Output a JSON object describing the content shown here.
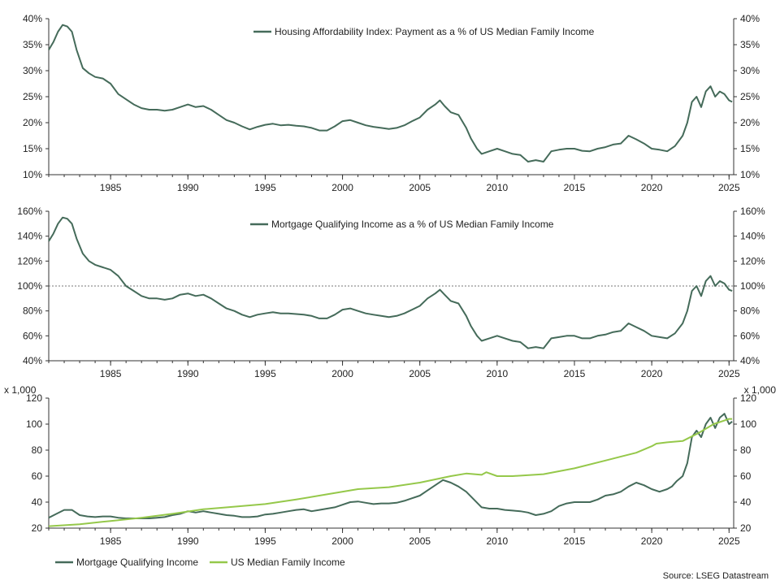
{
  "source": "Source: LSEG Datastream",
  "colors": {
    "dark_green": "#456b5a",
    "light_green": "#95c84a",
    "axis": "#333333",
    "ref_line": "#777777"
  },
  "chart_data": [
    {
      "type": "line",
      "title": "",
      "x_ticks": [
        "1985",
        "1990",
        "1995",
        "2000",
        "2005",
        "2010",
        "2015",
        "2020",
        "2025"
      ],
      "xlim": [
        1981,
        2025.3
      ],
      "ylim": [
        10,
        40
      ],
      "y_ticks": [
        "10%",
        "15%",
        "20%",
        "25%",
        "30%",
        "35%",
        "40%"
      ],
      "grid": false,
      "legend": "top-center",
      "series": [
        {
          "name": "Housing Affordability Index: Payment as a % of US Median Family Income",
          "color": "#456b5a",
          "x": [
            1981,
            1981.3,
            1981.6,
            1981.9,
            1982.2,
            1982.5,
            1982.8,
            1983.2,
            1983.6,
            1984,
            1984.5,
            1985,
            1985.5,
            1986,
            1986.5,
            1987,
            1987.5,
            1988,
            1988.5,
            1989,
            1989.5,
            1990,
            1990.5,
            1991,
            1991.5,
            1992,
            1992.5,
            1993,
            1993.5,
            1994,
            1994.5,
            1995,
            1995.5,
            1996,
            1996.5,
            1997,
            1997.5,
            1998,
            1998.5,
            1999,
            1999.5,
            2000,
            2000.5,
            2001,
            2001.5,
            2002,
            2002.5,
            2003,
            2003.5,
            2004,
            2004.5,
            2005,
            2005.5,
            2006,
            2006.3,
            2006.6,
            2007,
            2007.5,
            2008,
            2008.3,
            2008.7,
            2009,
            2009.5,
            2010,
            2010.5,
            2011,
            2011.5,
            2012,
            2012.5,
            2013,
            2013.5,
            2014,
            2014.5,
            2015,
            2015.5,
            2016,
            2016.5,
            2017,
            2017.5,
            2018,
            2018.5,
            2019,
            2019.5,
            2020,
            2020.5,
            2021,
            2021.5,
            2022,
            2022.3,
            2022.6,
            2022.9,
            2023.2,
            2023.5,
            2023.8,
            2024.1,
            2024.4,
            2024.7,
            2025,
            2025.2
          ],
          "y": [
            34,
            35.5,
            37.5,
            38.8,
            38.5,
            37.5,
            34,
            30.5,
            29.5,
            28.8,
            28.5,
            27.5,
            25.5,
            24.5,
            23.5,
            22.8,
            22.5,
            22.5,
            22.3,
            22.5,
            23,
            23.5,
            23,
            23.2,
            22.5,
            21.5,
            20.5,
            20,
            19.3,
            18.7,
            19.2,
            19.6,
            19.8,
            19.5,
            19.6,
            19.4,
            19.3,
            19,
            18.5,
            18.5,
            19.3,
            20.3,
            20.5,
            20,
            19.5,
            19.2,
            19,
            18.8,
            19,
            19.5,
            20.3,
            21,
            22.5,
            23.5,
            24.3,
            23.2,
            22,
            21.5,
            19,
            17,
            15,
            14,
            14.5,
            15,
            14.5,
            14,
            13.8,
            12.5,
            12.8,
            12.5,
            14.5,
            14.8,
            15,
            15,
            14.6,
            14.5,
            15,
            15.3,
            15.8,
            16,
            17.5,
            16.8,
            16,
            15,
            14.8,
            14.5,
            15.5,
            17.5,
            20,
            24,
            25,
            23,
            26,
            27,
            25,
            26,
            25.5,
            24.3,
            24
          ]
        }
      ]
    },
    {
      "type": "line",
      "title": "",
      "x_ticks": [
        "1985",
        "1990",
        "1995",
        "2000",
        "2005",
        "2010",
        "2015",
        "2020",
        "2025"
      ],
      "xlim": [
        1981,
        2025.3
      ],
      "ylim": [
        40,
        160
      ],
      "y_ticks": [
        "40%",
        "60%",
        "80%",
        "100%",
        "120%",
        "140%",
        "160%"
      ],
      "reference_line": 100,
      "grid": false,
      "legend": "top-center",
      "series": [
        {
          "name": "Mortgage Qualifying Income as a % of US Median Family Income",
          "color": "#456b5a",
          "x": [
            1981,
            1981.3,
            1981.6,
            1981.9,
            1982.2,
            1982.5,
            1982.8,
            1983.2,
            1983.6,
            1984,
            1984.5,
            1985,
            1985.5,
            1986,
            1986.5,
            1987,
            1987.5,
            1988,
            1988.5,
            1989,
            1989.5,
            1990,
            1990.5,
            1991,
            1991.5,
            1992,
            1992.5,
            1993,
            1993.5,
            1994,
            1994.5,
            1995,
            1995.5,
            1996,
            1996.5,
            1997,
            1997.5,
            1998,
            1998.5,
            1999,
            1999.5,
            2000,
            2000.5,
            2001,
            2001.5,
            2002,
            2002.5,
            2003,
            2003.5,
            2004,
            2004.5,
            2005,
            2005.5,
            2006,
            2006.3,
            2006.6,
            2007,
            2007.5,
            2008,
            2008.3,
            2008.7,
            2009,
            2009.5,
            2010,
            2010.5,
            2011,
            2011.5,
            2012,
            2012.5,
            2013,
            2013.5,
            2014,
            2014.5,
            2015,
            2015.5,
            2016,
            2016.5,
            2017,
            2017.5,
            2018,
            2018.5,
            2019,
            2019.5,
            2020,
            2020.5,
            2021,
            2021.5,
            2022,
            2022.3,
            2022.6,
            2022.9,
            2023.2,
            2023.5,
            2023.8,
            2024.1,
            2024.4,
            2024.7,
            2025,
            2025.2
          ],
          "y": [
            136,
            142,
            150,
            155,
            154,
            150,
            138,
            126,
            120,
            117,
            115,
            113,
            108,
            100,
            96,
            92,
            90,
            90,
            89,
            90,
            93,
            94,
            92,
            93,
            90,
            86,
            82,
            80,
            77,
            75,
            77,
            78,
            79,
            78,
            78,
            77.5,
            77,
            76,
            74,
            74,
            77,
            81,
            82,
            80,
            78,
            77,
            76,
            75,
            76,
            78,
            81,
            84,
            90,
            94,
            97,
            93,
            88,
            86,
            76,
            68,
            60,
            56,
            58,
            60,
            58,
            56,
            55,
            50,
            51,
            50,
            58,
            59,
            60,
            60,
            58,
            58,
            60,
            61,
            63,
            64,
            70,
            67,
            64,
            60,
            59,
            58,
            62,
            70,
            80,
            96,
            100,
            92,
            104,
            108,
            100,
            104,
            102,
            97,
            96
          ]
        }
      ]
    },
    {
      "type": "line",
      "title": "",
      "y_unit": "x 1,000",
      "x_ticks": [
        "1985",
        "1990",
        "1995",
        "2000",
        "2005",
        "2010",
        "2015",
        "2020",
        "2025"
      ],
      "xlim": [
        1981,
        2025.3
      ],
      "ylim": [
        20,
        120
      ],
      "y_ticks": [
        "20",
        "40",
        "60",
        "80",
        "100",
        "120"
      ],
      "grid": false,
      "legend": "bottom-left",
      "series": [
        {
          "name": "Mortgage Qualifying Income",
          "color": "#456b5a",
          "x": [
            1981,
            1981.5,
            1982,
            1982.5,
            1983,
            1983.5,
            1984,
            1984.5,
            1985,
            1985.5,
            1986,
            1986.5,
            1987,
            1987.5,
            1988,
            1988.5,
            1989,
            1989.5,
            1990,
            1990.5,
            1991,
            1991.5,
            1992,
            1992.5,
            1993,
            1993.5,
            1994,
            1994.5,
            1995,
            1995.5,
            1996,
            1996.5,
            1997,
            1997.5,
            1998,
            1998.5,
            1999,
            1999.5,
            2000,
            2000.5,
            2001,
            2001.5,
            2002,
            2002.5,
            2003,
            2003.5,
            2004,
            2004.5,
            2005,
            2005.5,
            2006,
            2006.5,
            2007,
            2007.5,
            2008,
            2008.5,
            2009,
            2009.5,
            2010,
            2010.5,
            2011,
            2011.5,
            2012,
            2012.5,
            2013,
            2013.5,
            2014,
            2014.5,
            2015,
            2015.5,
            2016,
            2016.5,
            2017,
            2017.5,
            2018,
            2018.5,
            2019,
            2019.5,
            2020,
            2020.5,
            2021,
            2021.3,
            2021.6,
            2022,
            2022.3,
            2022.6,
            2022.9,
            2023.2,
            2023.5,
            2023.8,
            2024.1,
            2024.4,
            2024.7,
            2025,
            2025.2
          ],
          "y": [
            28,
            31,
            34,
            34,
            30,
            29,
            28.5,
            29,
            29,
            28,
            27.5,
            27.5,
            27.5,
            27.5,
            28,
            28.5,
            30,
            31,
            33,
            32,
            33,
            32,
            31,
            30,
            29.5,
            28.5,
            28.5,
            29,
            30.5,
            31,
            32,
            33,
            34,
            34.5,
            33,
            34,
            35,
            36,
            38,
            40,
            40.5,
            39.5,
            38.5,
            39,
            39,
            39.5,
            41,
            43,
            45,
            49,
            53,
            57,
            55,
            52,
            48,
            42,
            36,
            35,
            35,
            34,
            33.5,
            33,
            32,
            30,
            31,
            33,
            37,
            39,
            40,
            40,
            40,
            42,
            45,
            46,
            48,
            52,
            55,
            53,
            50,
            48,
            50,
            52,
            56,
            60,
            70,
            90,
            95,
            90,
            100,
            105,
            97,
            105,
            108,
            100,
            102
          ]
        },
        {
          "name": "US Median Family Income",
          "color": "#95c84a",
          "x": [
            1981,
            1983,
            1985,
            1987,
            1989,
            1991,
            1993,
            1995,
            1997,
            1999,
            2001,
            2003,
            2005,
            2007,
            2008,
            2009,
            2009.3,
            2010,
            2011,
            2013,
            2015,
            2017,
            2019,
            2020,
            2020.3,
            2021,
            2022,
            2023,
            2024,
            2025,
            2025.2
          ],
          "y": [
            21.5,
            23,
            25.5,
            28,
            31,
            34.5,
            36.5,
            38.5,
            42,
            46,
            50,
            51.5,
            55,
            60,
            62,
            61,
            63,
            60,
            60,
            61.5,
            66,
            72,
            78,
            83,
            85,
            86,
            87,
            93,
            100,
            104,
            104
          ]
        }
      ]
    }
  ]
}
